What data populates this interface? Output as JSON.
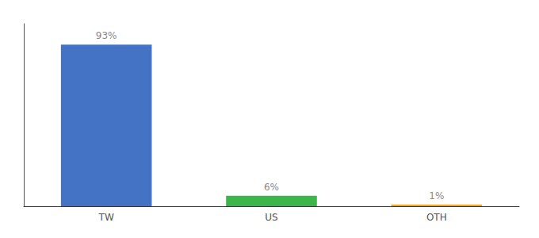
{
  "chart_data": {
    "type": "bar",
    "categories": [
      "TW",
      "US",
      "OTH"
    ],
    "values": [
      93,
      6,
      1
    ],
    "value_labels": [
      "93%",
      "6%",
      "1%"
    ],
    "colors": [
      "#4472c4",
      "#3cb54a",
      "#f5a623"
    ],
    "ylim": [
      0,
      105
    ],
    "data_labels": true,
    "tick_labels": "x",
    "grid": false
  }
}
